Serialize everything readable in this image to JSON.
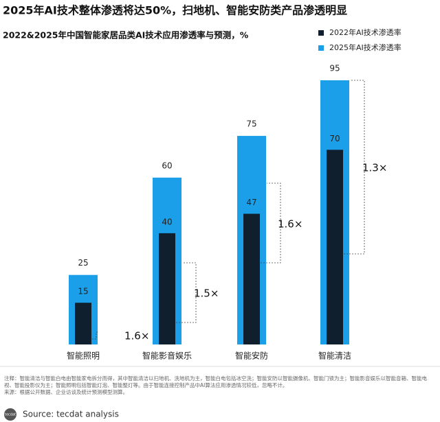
{
  "chart_data": {
    "type": "overlap-bar",
    "title": "2025年AI技术整体渗透将达50%，扫地机、智能安防类产品渗透明显",
    "subtitle": "2022&2025年中国智能家居品类AI技术应用渗透率与预测，%",
    "categories": [
      "智能照明",
      "智能影音娱乐",
      "智能安防",
      "智能清洁"
    ],
    "series": [
      {
        "name": "2022年AI技术渗透率",
        "color": "#0f1f2e",
        "values": [
          15,
          40,
          47,
          70
        ]
      },
      {
        "name": "2025年AI技术渗透率",
        "color": "#1a9fe8",
        "values": [
          25,
          60,
          75,
          95
        ]
      }
    ],
    "annotations": [
      "1.6×",
      "1.5×",
      "1.6×",
      "1.3×"
    ],
    "notes": [
      "注释：智能清洁与智能白电由智能家电拆分而得，其中智能清洁以扫地机、洗地机为主，智能白电包括冰空洗；智能安防以智能摄像机、智能门锁为主；智能影音娱乐以智能音箱、智能电视、智能投影仪为主；智能照明包括智能灯泡、智能整灯等。由于智能连接控制产品中AI算法应用渗透情况较低，忽略不计。",
      "来源：根据公开数据、企业访谈及统计预测模型测算。"
    ],
    "source": "Source: tecdat analysis",
    "logo": "tecdat"
  }
}
